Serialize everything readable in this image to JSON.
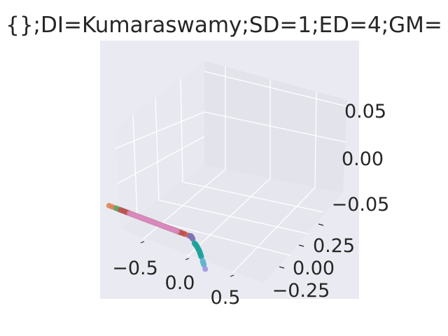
{
  "title": "{};DI=Kumaraswamy;SD=1;ED=4;GM=",
  "chart_data": {
    "type": "scatter",
    "projection": "3d",
    "grid": true,
    "xticks": [
      "−0.5",
      "0.0",
      "0.5"
    ],
    "yticks": [
      "−0.25",
      "0.00",
      "0.25"
    ],
    "zticks": [
      "−0.05",
      "0.00",
      "0.05"
    ],
    "xlim": [
      -0.7,
      0.75
    ],
    "ylim": [
      -0.35,
      0.4
    ],
    "zlim": [
      -0.08,
      0.08
    ],
    "series": [
      {
        "color": "#dd8452",
        "points": [
          [
            -0.68,
            0.12,
            0.0
          ],
          [
            -0.5,
            0.12,
            0.0
          ],
          [
            -0.32,
            0.12,
            0.0
          ],
          [
            -0.14,
            0.12,
            0.0
          ],
          [
            0.04,
            0.12,
            0.0
          ],
          [
            0.2,
            0.12,
            0.0
          ]
        ]
      },
      {
        "color": "#55a868",
        "points": [
          [
            -0.6,
            0.12,
            0.0
          ],
          [
            -0.42,
            0.12,
            0.0
          ],
          [
            -0.24,
            0.12,
            0.0
          ],
          [
            -0.06,
            0.12,
            0.0
          ],
          [
            0.12,
            0.12,
            0.0
          ]
        ]
      },
      {
        "color": "#c44e52",
        "points": [
          [
            -0.55,
            0.12,
            0.0
          ],
          [
            -0.37,
            0.12,
            0.0
          ],
          [
            -0.2,
            0.12,
            0.0
          ],
          [
            -0.02,
            0.12,
            0.0
          ],
          [
            0.16,
            0.12,
            0.0
          ]
        ]
      },
      {
        "color": "#da8bc3",
        "points": [
          [
            -0.45,
            0.12,
            0.0
          ],
          [
            -0.28,
            0.12,
            0.0
          ],
          [
            -0.1,
            0.12,
            0.0
          ],
          [
            0.08,
            0.12,
            0.0
          ]
        ]
      },
      {
        "color": "#8172b3",
        "points": [
          [
            0.22,
            0.12,
            0.0
          ],
          [
            0.23,
            0.11,
            -0.002
          ],
          [
            0.24,
            0.09,
            -0.01
          ]
        ]
      },
      {
        "color": "#1fa39b",
        "points": [
          [
            0.25,
            0.07,
            -0.02
          ],
          [
            0.26,
            0.04,
            -0.03
          ],
          [
            0.27,
            0.0,
            -0.045
          ],
          [
            0.28,
            -0.03,
            -0.06
          ]
        ]
      },
      {
        "color": "#64b5cd",
        "points": [
          [
            0.285,
            -0.05,
            -0.07
          ],
          [
            0.29,
            -0.07,
            -0.08
          ]
        ]
      },
      {
        "color": "#9b8fe0",
        "points": [
          [
            0.295,
            -0.09,
            -0.09
          ]
        ]
      }
    ]
  }
}
